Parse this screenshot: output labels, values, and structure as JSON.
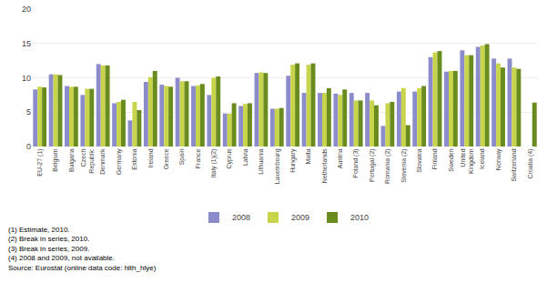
{
  "chart_data": {
    "type": "bar",
    "categories": [
      "EU-27 (1)",
      "Belgium",
      "Bulgaria",
      "Czech\nRepublic",
      "Denmark",
      "Germany",
      "Estonia",
      "Ireland",
      "Greece",
      "Spain",
      "France",
      "Italy (1)(2)",
      "Cyprus",
      "Latvia",
      "Lithuania",
      "Luxembourg",
      "Hungary",
      "Malta",
      "Netherlands",
      "Austria",
      "Poland (3)",
      "Portugal (2)",
      "Romania (2)",
      "Slovenia (2)",
      "Slovakia",
      "Finland",
      "Sweden",
      "United\nKingdom",
      "Iceland",
      "Norway",
      "Switzerland",
      "Croatia (4)"
    ],
    "series": [
      {
        "name": "2008",
        "color": "#8c8ccc",
        "values": [
          8.3,
          10.5,
          8.8,
          7.5,
          12.0,
          6.3,
          3.8,
          9.4,
          9.0,
          10.0,
          8.8,
          7.5,
          4.8,
          5.9,
          10.7,
          5.5,
          10.3,
          7.8,
          7.8,
          7.7,
          7.8,
          7.8,
          3.0,
          8.0,
          8.0,
          13.0,
          10.9,
          14.0,
          14.5,
          12.8,
          12.8,
          0.0
        ]
      },
      {
        "name": "2009",
        "color": "#c8d44a",
        "values": [
          8.7,
          10.5,
          8.7,
          8.4,
          11.8,
          6.5,
          6.5,
          10.1,
          8.8,
          9.5,
          8.9,
          10.0,
          4.8,
          6.2,
          10.8,
          5.5,
          11.9,
          11.9,
          7.8,
          7.5,
          6.7,
          6.7,
          6.3,
          8.5,
          8.5,
          13.7,
          11.0,
          13.3,
          14.7,
          12.1,
          11.5,
          0.0
        ]
      },
      {
        "name": "2010",
        "color": "#6a8c1e",
        "values": [
          8.6,
          10.4,
          8.7,
          8.4,
          11.8,
          6.8,
          5.3,
          11.0,
          8.7,
          9.5,
          9.1,
          10.2,
          6.3,
          6.3,
          10.7,
          5.6,
          12.1,
          12.1,
          8.5,
          8.3,
          6.7,
          6.0,
          6.5,
          3.1,
          8.8,
          13.9,
          11.0,
          13.3,
          14.9,
          11.5,
          11.3,
          6.4
        ]
      }
    ],
    "ylim": [
      0,
      20
    ],
    "yticks": [
      0,
      5,
      10,
      15,
      20
    ],
    "grid": true,
    "legend": "bottom",
    "annotations": [
      "(1) Estimate, 2010.",
      "(2) Break in series, 2010.",
      "(3) Break in series, 2009.",
      "(4) 2008 and 2009, not available.",
      "Source: Eurostat (online data code: hlth_hlye)"
    ]
  }
}
